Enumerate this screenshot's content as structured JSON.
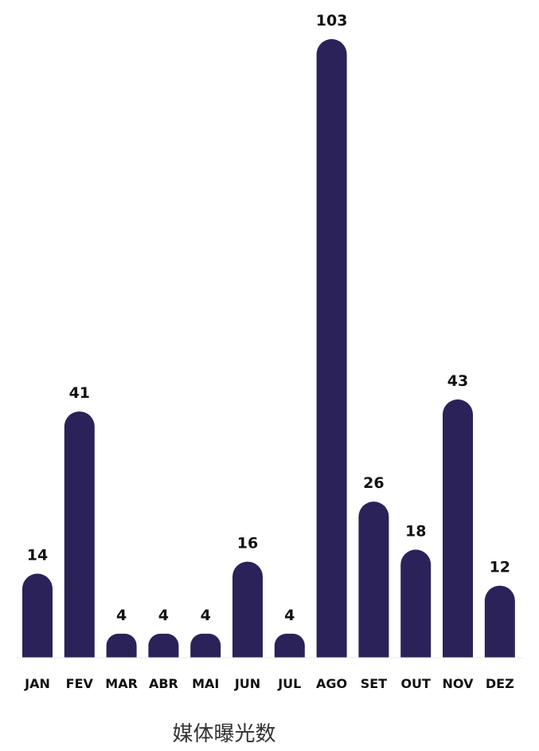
{
  "chart_data": {
    "type": "bar",
    "categories": [
      "JAN",
      "FEV",
      "MAR",
      "ABR",
      "MAI",
      "JUN",
      "JUL",
      "AGO",
      "SET",
      "OUT",
      "NOV",
      "DEZ"
    ],
    "values": [
      14,
      41,
      4,
      4,
      4,
      16,
      4,
      103,
      26,
      18,
      43,
      12
    ],
    "title": "",
    "xlabel": "媒体曝光数",
    "ylabel": "",
    "ylim": [
      0,
      103
    ],
    "grid": false,
    "legend": "none",
    "data_labels": true,
    "bar_color": "#2b2259"
  }
}
